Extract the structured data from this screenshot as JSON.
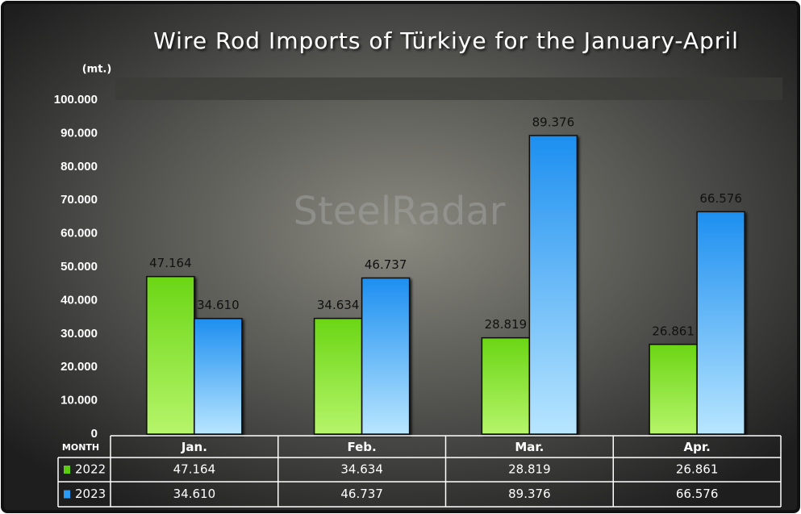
{
  "chart_data": {
    "type": "bar",
    "title": "Wire Rod Imports of Türkiye for the January-April",
    "y_label": "(mt.)",
    "table_header": "MONTH",
    "watermark": "SteelRadar",
    "categories": [
      "Jan.",
      "Feb.",
      "Mar.",
      "Apr."
    ],
    "series": [
      {
        "name": "2022",
        "color": "#5ccc10",
        "values": [
          47164,
          34634,
          28819,
          26861
        ],
        "value_labels": [
          "47.164",
          "34.634",
          "28.819",
          "26.861"
        ]
      },
      {
        "name": "2023",
        "color": "#2a9cf6",
        "values": [
          34610,
          46737,
          89376,
          66576
        ],
        "value_labels": [
          "34.610",
          "46.737",
          "89.376",
          "66.576"
        ]
      }
    ],
    "ylim": [
      0,
      100000
    ],
    "yticks": [
      0,
      {
        "value": 10000,
        "label": "10.000"
      },
      {
        "value": 20000,
        "label": "20.000"
      },
      {
        "value": 30000,
        "label": "30.000"
      },
      {
        "value": 40000,
        "label": "40.000"
      },
      {
        "value": 50000,
        "label": "50.000"
      },
      {
        "value": 60000,
        "label": "60.000"
      },
      {
        "value": 70000,
        "label": "70.000"
      },
      {
        "value": 80000,
        "label": "80.000"
      },
      {
        "value": 90000,
        "label": "90.000"
      },
      {
        "value": 100000,
        "label": "100.000"
      }
    ],
    "grid": false
  }
}
